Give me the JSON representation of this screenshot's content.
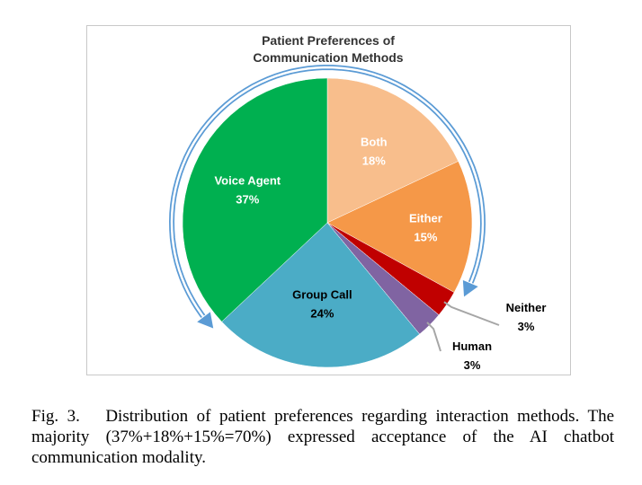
{
  "chart_data": {
    "type": "pie",
    "title_lines": [
      "Patient Preferences of",
      "Communication Methods"
    ],
    "slices": [
      {
        "name": "Both",
        "value": 18,
        "label": "18%",
        "color": "#f8be8c",
        "text_color": "#ffffff"
      },
      {
        "name": "Either",
        "value": 15,
        "label": "15%",
        "color": "#f59848",
        "text_color": "#ffffff"
      },
      {
        "name": "Neither",
        "value": 3,
        "label": "3%",
        "color": "#c00000",
        "text_color": "#000000"
      },
      {
        "name": "Human",
        "value": 3,
        "label": "3%",
        "color": "#8064a2",
        "text_color": "#000000"
      },
      {
        "name": "Group Call",
        "value": 24,
        "label": "24%",
        "color": "#4bacc6",
        "text_color": "#000000"
      },
      {
        "name": "Voice Agent",
        "value": 37,
        "label": "37%",
        "color": "#00b050",
        "text_color": "#ffffff"
      }
    ],
    "annotation": {
      "arrow": "curved arrow spanning Voice Agent, Both and Either",
      "color": "#5b9bd5",
      "includes": [
        "Voice Agent",
        "Both",
        "Either"
      ]
    }
  },
  "caption": {
    "figure_label": "Fig. 3.",
    "text": "Distribution of patient preferences regarding interaction methods. The majority (37%+18%+15%=70%) expressed acceptance of the AI chatbot communication modality."
  }
}
